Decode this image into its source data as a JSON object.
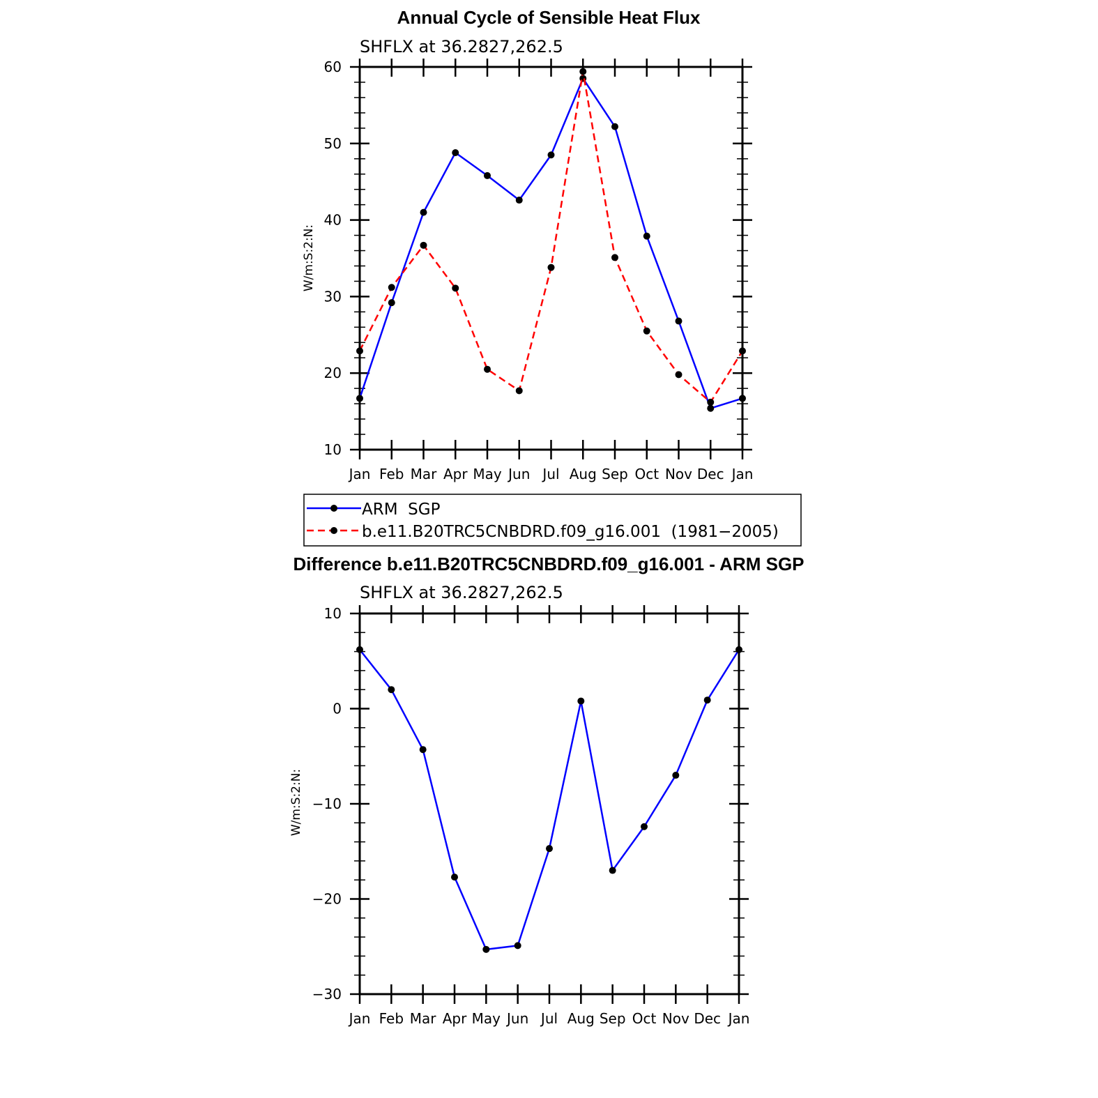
{
  "chart_data": [
    {
      "type": "line",
      "title": "Annual Cycle of Sensible Heat Flux",
      "subtitle": "SHFLX  at  36.2827,262.5",
      "ylabel": "W/m:S:2:N:",
      "categories": [
        "Jan",
        "Feb",
        "Mar",
        "Apr",
        "May",
        "Jun",
        "Jul",
        "Aug",
        "Sep",
        "Oct",
        "Nov",
        "Dec",
        "Jan"
      ],
      "ylim": [
        10,
        60
      ],
      "yticks": [
        10,
        20,
        30,
        40,
        50,
        60
      ],
      "grid": false,
      "legend_position": "below",
      "series": [
        {
          "name": "ARM  SGP",
          "color": "#0000ff",
          "dash": "solid",
          "values": [
            16.7,
            29.2,
            41.0,
            48.8,
            45.8,
            42.6,
            48.5,
            58.5,
            52.2,
            37.9,
            26.8,
            15.4,
            16.7
          ]
        },
        {
          "name": "b.e11.B20TRC5CNBDRD.f09_g16.001  (1981−2005)",
          "color": "#ff0000",
          "dash": "dashed",
          "values": [
            22.9,
            31.2,
            36.7,
            31.1,
            20.5,
            17.7,
            33.8,
            59.4,
            35.1,
            25.5,
            19.8,
            16.2,
            22.9
          ]
        }
      ]
    },
    {
      "type": "line",
      "title": "Difference b.e11.B20TRC5CNBDRD.f09_g16.001 - ARM SGP",
      "subtitle": "SHFLX  at  36.2827,262.5",
      "ylabel": "W/m:S:2:N:",
      "categories": [
        "Jan",
        "Feb",
        "Mar",
        "Apr",
        "May",
        "Jun",
        "Jul",
        "Aug",
        "Sep",
        "Oct",
        "Nov",
        "Dec",
        "Jan"
      ],
      "ylim": [
        -30,
        10
      ],
      "yticks": [
        -30,
        -20,
        -10,
        0,
        10
      ],
      "ytick_labels": [
        "−30",
        "−20",
        "−10",
        "0",
        "10"
      ],
      "grid": false,
      "series": [
        {
          "color": "#0000ff",
          "dash": "solid",
          "values": [
            6.2,
            2.0,
            -4.3,
            -17.7,
            -25.3,
            -24.9,
            -14.7,
            0.8,
            -17.0,
            -12.4,
            -7.0,
            0.9,
            6.2
          ]
        }
      ]
    }
  ]
}
